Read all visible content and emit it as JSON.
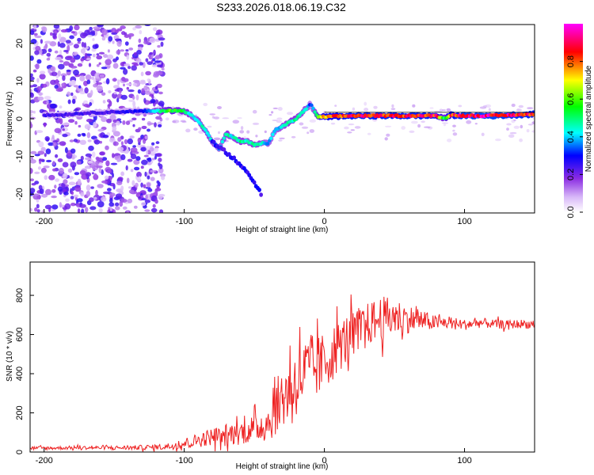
{
  "title": "S233.2026.018.06.19.C32",
  "chart_data": [
    {
      "type": "heatmap",
      "title": "S233.2026.018.06.19.C32",
      "xlabel": "Height of straight line (km)",
      "ylabel": "Frequency (Hz)",
      "xlim": [
        -210,
        150
      ],
      "ylim": [
        -25,
        25
      ],
      "xticks": [
        -200,
        -100,
        0,
        100
      ],
      "yticks": [
        -20,
        -10,
        0,
        10,
        20
      ],
      "colorbar": {
        "label": "Normalized spectral amplitude",
        "range": [
          0,
          1
        ],
        "ticks": [
          "0.0",
          "0.2",
          "0.4",
          "0.6",
          "0.8"
        ],
        "tick_values": [
          0.0,
          0.2,
          0.4,
          0.6,
          0.8
        ],
        "colormap": [
          "#ffffff",
          "#8a2be2",
          "#0000ff",
          "#00ffff",
          "#00ff00",
          "#ffff00",
          "#ff0000",
          "#ff00ff"
        ]
      },
      "ridge": {
        "x": [
          -190,
          -170,
          -150,
          -130,
          -120,
          -110,
          -100,
          -95,
          -90,
          -85,
          -80,
          -75,
          -70,
          -65,
          -60,
          -55,
          -50,
          -45,
          -40,
          -35,
          -30,
          -25,
          -20,
          -15,
          -12,
          -10,
          -5,
          0,
          20,
          40,
          60,
          80,
          85,
          90,
          100,
          120,
          150
        ],
        "y": [
          1.0,
          1.5,
          1.8,
          2.0,
          2.0,
          2.2,
          2.0,
          1.0,
          -0.5,
          -3,
          -6,
          -8,
          -4,
          -5,
          -6,
          -6,
          -7,
          -6.5,
          -6.5,
          -3,
          -2,
          -1,
          0,
          2,
          3,
          4,
          0.5,
          0.5,
          0.8,
          0.8,
          0.8,
          0.8,
          0,
          1,
          0.8,
          0.8,
          1.2
        ],
        "amplitude": [
          0.25,
          0.25,
          0.25,
          0.3,
          0.45,
          0.6,
          0.55,
          0.45,
          0.45,
          0.5,
          0.45,
          0.4,
          0.5,
          0.45,
          0.5,
          0.45,
          0.5,
          0.45,
          0.4,
          0.4,
          0.45,
          0.5,
          0.5,
          0.45,
          0.45,
          0.3,
          0.6,
          0.8,
          0.9,
          0.9,
          0.9,
          0.9,
          0.5,
          0.85,
          0.95,
          0.95,
          0.9
        ]
      },
      "lower_branch": {
        "x": [
          -80,
          -70,
          -60,
          -55,
          -50,
          -45
        ],
        "y": [
          -6,
          -9,
          -12,
          -14,
          -17,
          -20
        ]
      }
    },
    {
      "type": "line",
      "xlabel": "Height of straight line (km)",
      "ylabel": "SNR (10 * v/v)",
      "xlim": [
        -210,
        150
      ],
      "ylim": [
        0,
        970
      ],
      "xticks": [
        -200,
        -100,
        0,
        100
      ],
      "yticks": [
        0,
        200,
        400,
        600,
        800
      ],
      "series": [
        {
          "name": "SNR",
          "color": "#ee2222",
          "x": [
            -210,
            -200,
            -180,
            -160,
            -140,
            -120,
            -110,
            -100,
            -90,
            -80,
            -70,
            -60,
            -50,
            -40,
            -35,
            -30,
            -25,
            -20,
            -15,
            -10,
            -5,
            0,
            5,
            10,
            20,
            30,
            40,
            50,
            60,
            70,
            80,
            90,
            100,
            110,
            120,
            130,
            140,
            150
          ],
          "y": [
            20,
            20,
            22,
            22,
            22,
            25,
            30,
            45,
            60,
            80,
            90,
            100,
            120,
            150,
            220,
            280,
            320,
            360,
            400,
            420,
            430,
            460,
            500,
            540,
            600,
            650,
            680,
            690,
            680,
            670,
            660,
            660,
            650,
            660,
            655,
            650,
            655,
            650
          ],
          "spread": [
            10,
            10,
            10,
            10,
            12,
            15,
            20,
            30,
            40,
            50,
            60,
            70,
            80,
            110,
            150,
            180,
            200,
            200,
            200,
            200,
            180,
            170,
            160,
            150,
            140,
            120,
            130,
            110,
            80,
            60,
            40,
            35,
            30,
            30,
            25,
            25,
            25,
            25
          ]
        }
      ]
    }
  ]
}
